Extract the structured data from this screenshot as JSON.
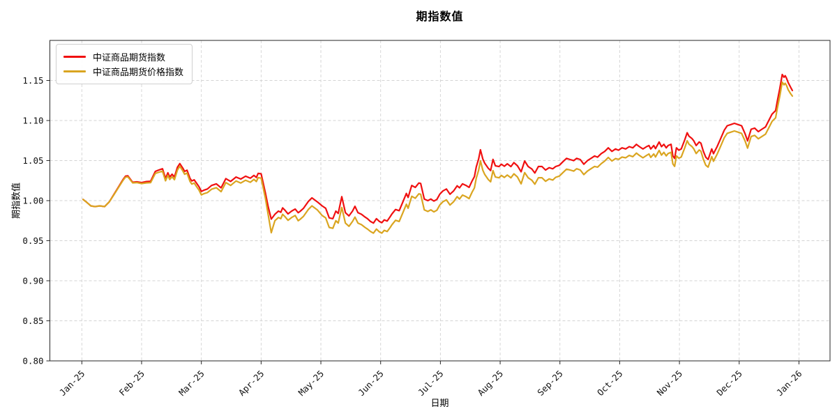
{
  "figure": {
    "background": "#ffffff",
    "grid_color": "#d3d3d3",
    "spine_color": "#262626"
  },
  "chart_data": {
    "type": "line",
    "title": "期指数值",
    "xlabel": "日期",
    "ylabel": "期指数值",
    "grid": true,
    "legend_position": "upper-left",
    "x_unit": "months-since-Jan-25",
    "x_tick_labels": [
      "Jan-25",
      "Feb-25",
      "Mar-25",
      "Apr-25",
      "May-25",
      "Jun-25",
      "Jul-25",
      "Aug-25",
      "Sep-25",
      "Oct-25",
      "Nov-25",
      "Dec-25",
      "Jan-26"
    ],
    "x_tick_positions": [
      0,
      1,
      2,
      3,
      4,
      5,
      6,
      7,
      8,
      9,
      10,
      11,
      12
    ],
    "y_tick_labels": [
      "0.80",
      "0.85",
      "0.90",
      "0.95",
      "1.00",
      "1.05",
      "1.10",
      "1.15"
    ],
    "y_tick_values": [
      0.8,
      0.85,
      0.9,
      0.95,
      1.0,
      1.05,
      1.1,
      1.15
    ],
    "xlim": [
      -0.535,
      12.52
    ],
    "ylim": [
      0.8,
      1.2
    ],
    "series": [
      {
        "name": "中证商品期货指数",
        "color": "#f01010"
      },
      {
        "name": "中证商品期货价格指数",
        "color": "#daa520"
      }
    ],
    "points": [
      [
        0.02,
        1.0015,
        1.0015
      ],
      [
        0.08,
        0.998,
        0.998
      ],
      [
        0.15,
        0.9935,
        0.9935
      ],
      [
        0.22,
        0.9925,
        0.9925
      ],
      [
        0.3,
        0.9935,
        0.9935
      ],
      [
        0.38,
        0.9925,
        0.9925
      ],
      [
        0.46,
        0.9985,
        0.9985
      ],
      [
        0.53,
        1.007,
        1.0065
      ],
      [
        0.62,
        1.018,
        1.0172
      ],
      [
        0.69,
        1.0265,
        1.0255
      ],
      [
        0.73,
        1.0305,
        1.0293
      ],
      [
        0.77,
        1.031,
        1.0297
      ],
      [
        0.85,
        1.023,
        1.0222
      ],
      [
        0.92,
        1.0235,
        1.0225
      ],
      [
        1.0,
        1.0225,
        1.0213
      ],
      [
        1.08,
        1.0238,
        1.0222
      ],
      [
        1.15,
        1.0242,
        1.0224
      ],
      [
        1.23,
        1.0365,
        1.034
      ],
      [
        1.28,
        1.038,
        1.0352
      ],
      [
        1.35,
        1.0398,
        1.0368
      ],
      [
        1.4,
        1.0278,
        1.0248
      ],
      [
        1.44,
        1.0348,
        1.0316
      ],
      [
        1.47,
        1.0296,
        1.0264
      ],
      [
        1.51,
        1.033,
        1.0298
      ],
      [
        1.55,
        1.0296,
        1.0262
      ],
      [
        1.6,
        1.0417,
        1.0383
      ],
      [
        1.64,
        1.0463,
        1.043
      ],
      [
        1.69,
        1.0406,
        1.0371
      ],
      [
        1.72,
        1.0365,
        1.033
      ],
      [
        1.76,
        1.038,
        1.0344
      ],
      [
        1.81,
        1.0278,
        1.024
      ],
      [
        1.84,
        1.0246,
        1.0207
      ],
      [
        1.88,
        1.026,
        1.022
      ],
      [
        1.92,
        1.0217,
        1.0175
      ],
      [
        1.96,
        1.0174,
        1.0131
      ],
      [
        2.0,
        1.0116,
        1.0072
      ],
      [
        2.04,
        1.013,
        1.0086
      ],
      [
        2.1,
        1.0145,
        1.01
      ],
      [
        2.17,
        1.019,
        1.0143
      ],
      [
        2.25,
        1.021,
        1.0162
      ],
      [
        2.33,
        1.016,
        1.0112
      ],
      [
        2.41,
        1.0275,
        1.0225
      ],
      [
        2.49,
        1.024,
        1.019
      ],
      [
        2.58,
        1.0295,
        1.0245
      ],
      [
        2.66,
        1.027,
        1.022
      ],
      [
        2.74,
        1.0305,
        1.0255
      ],
      [
        2.82,
        1.028,
        1.023
      ],
      [
        2.88,
        1.0315,
        1.0265
      ],
      [
        2.92,
        1.029,
        1.0238
      ],
      [
        2.95,
        1.034,
        1.0287
      ],
      [
        3.0,
        1.0335,
        1.0281
      ],
      [
        3.07,
        1.01,
        1.0035
      ],
      [
        3.12,
        0.992,
        0.982
      ],
      [
        3.17,
        0.977,
        0.96
      ],
      [
        3.23,
        0.983,
        0.975
      ],
      [
        3.29,
        0.987,
        0.979
      ],
      [
        3.33,
        0.9855,
        0.9775
      ],
      [
        3.36,
        0.991,
        0.983
      ],
      [
        3.4,
        0.988,
        0.98
      ],
      [
        3.45,
        0.9835,
        0.9755
      ],
      [
        3.51,
        0.987,
        0.979
      ],
      [
        3.57,
        0.9895,
        0.9815
      ],
      [
        3.62,
        0.985,
        0.975
      ],
      [
        3.65,
        0.9865,
        0.9765
      ],
      [
        3.71,
        0.9905,
        0.9805
      ],
      [
        3.79,
        0.999,
        0.989
      ],
      [
        3.85,
        1.0035,
        0.9935
      ],
      [
        3.94,
        0.9985,
        0.9885
      ],
      [
        4.02,
        0.9935,
        0.9815
      ],
      [
        4.08,
        0.9905,
        0.9785
      ],
      [
        4.14,
        0.9785,
        0.9665
      ],
      [
        4.2,
        0.9775,
        0.9655
      ],
      [
        4.25,
        0.987,
        0.975
      ],
      [
        4.29,
        0.984,
        0.972
      ],
      [
        4.35,
        1.005,
        0.9915
      ],
      [
        4.41,
        0.985,
        0.972
      ],
      [
        4.47,
        0.981,
        0.968
      ],
      [
        4.53,
        0.987,
        0.974
      ],
      [
        4.57,
        0.993,
        0.9795
      ],
      [
        4.62,
        0.985,
        0.972
      ],
      [
        4.68,
        0.983,
        0.97
      ],
      [
        4.74,
        0.9795,
        0.9665
      ],
      [
        4.78,
        0.9775,
        0.9645
      ],
      [
        4.83,
        0.974,
        0.9615
      ],
      [
        4.88,
        0.972,
        0.9595
      ],
      [
        4.93,
        0.9775,
        0.9645
      ],
      [
        4.98,
        0.974,
        0.961
      ],
      [
        5.02,
        0.9725,
        0.9595
      ],
      [
        5.06,
        0.976,
        0.963
      ],
      [
        5.11,
        0.9745,
        0.9615
      ],
      [
        5.16,
        0.98,
        0.9665
      ],
      [
        5.19,
        0.9835,
        0.97
      ],
      [
        5.25,
        0.989,
        0.9755
      ],
      [
        5.31,
        0.9875,
        0.974
      ],
      [
        5.37,
        0.998,
        0.9845
      ],
      [
        5.43,
        1.009,
        0.9955
      ],
      [
        5.46,
        1.004,
        0.9905
      ],
      [
        5.52,
        1.019,
        1.0055
      ],
      [
        5.58,
        1.0165,
        1.003
      ],
      [
        5.64,
        1.022,
        1.0085
      ],
      [
        5.67,
        1.0215,
        1.008
      ],
      [
        5.73,
        1.002,
        0.9885
      ],
      [
        5.79,
        1.0,
        0.9865
      ],
      [
        5.84,
        1.002,
        0.9885
      ],
      [
        5.89,
        0.9995,
        0.986
      ],
      [
        5.94,
        1.0015,
        0.988
      ],
      [
        5.99,
        1.008,
        0.9945
      ],
      [
        6.04,
        1.012,
        0.9985
      ],
      [
        6.1,
        1.0145,
        1.001
      ],
      [
        6.16,
        1.008,
        0.9945
      ],
      [
        6.22,
        1.012,
        0.9985
      ],
      [
        6.28,
        1.0185,
        1.005
      ],
      [
        6.32,
        1.016,
        1.002
      ],
      [
        6.37,
        1.021,
        1.007
      ],
      [
        6.43,
        1.019,
        1.005
      ],
      [
        6.48,
        1.0165,
        1.0025
      ],
      [
        6.53,
        1.0245,
        1.0105
      ],
      [
        6.57,
        1.03,
        1.016
      ],
      [
        6.6,
        1.042,
        1.028
      ],
      [
        6.64,
        1.052,
        1.038
      ],
      [
        6.67,
        1.0635,
        1.0497
      ],
      [
        6.71,
        1.052,
        1.038
      ],
      [
        6.74,
        1.047,
        1.033
      ],
      [
        6.8,
        1.0405,
        1.0265
      ],
      [
        6.84,
        1.0375,
        1.0235
      ],
      [
        6.88,
        1.0515,
        1.0375
      ],
      [
        6.92,
        1.0435,
        1.0295
      ],
      [
        6.98,
        1.0425,
        1.0285
      ],
      [
        7.02,
        1.0455,
        1.0315
      ],
      [
        7.07,
        1.043,
        1.029
      ],
      [
        7.12,
        1.046,
        1.032
      ],
      [
        7.18,
        1.0425,
        1.0285
      ],
      [
        7.23,
        1.0475,
        1.0335
      ],
      [
        7.29,
        1.0435,
        1.0295
      ],
      [
        7.35,
        1.036,
        1.021
      ],
      [
        7.41,
        1.0495,
        1.035
      ],
      [
        7.47,
        1.0425,
        1.0285
      ],
      [
        7.53,
        1.0395,
        1.0255
      ],
      [
        7.58,
        1.0345,
        1.0205
      ],
      [
        7.64,
        1.0426,
        1.0286
      ],
      [
        7.7,
        1.0426,
        1.0286
      ],
      [
        7.76,
        1.0382,
        1.0242
      ],
      [
        7.82,
        1.0411,
        1.0271
      ],
      [
        7.88,
        1.0397,
        1.0257
      ],
      [
        7.93,
        1.0426,
        1.0291
      ],
      [
        7.99,
        1.0441,
        1.0306
      ],
      [
        8.05,
        1.0485,
        1.035
      ],
      [
        8.11,
        1.0528,
        1.0393
      ],
      [
        8.17,
        1.0513,
        1.0383
      ],
      [
        8.23,
        1.0499,
        1.0369
      ],
      [
        8.28,
        1.0528,
        1.0398
      ],
      [
        8.34,
        1.0513,
        1.0383
      ],
      [
        8.4,
        1.0455,
        1.0325
      ],
      [
        8.46,
        1.0499,
        1.0369
      ],
      [
        8.52,
        1.0528,
        1.0398
      ],
      [
        8.58,
        1.0557,
        1.0427
      ],
      [
        8.63,
        1.0543,
        1.0418
      ],
      [
        8.69,
        1.0586,
        1.0461
      ],
      [
        8.75,
        1.0615,
        1.0495
      ],
      [
        8.81,
        1.0659,
        1.0539
      ],
      [
        8.87,
        1.0615,
        1.0495
      ],
      [
        8.93,
        1.0645,
        1.0525
      ],
      [
        8.98,
        1.063,
        1.0515
      ],
      [
        9.04,
        1.0659,
        1.0544
      ],
      [
        9.1,
        1.0645,
        1.0535
      ],
      [
        9.16,
        1.0674,
        1.0564
      ],
      [
        9.22,
        1.0659,
        1.0549
      ],
      [
        9.28,
        1.0703,
        1.0593
      ],
      [
        9.33,
        1.0674,
        1.0564
      ],
      [
        9.39,
        1.0645,
        1.0535
      ],
      [
        9.45,
        1.0674,
        1.0564
      ],
      [
        9.49,
        1.0688,
        1.0583
      ],
      [
        9.52,
        1.0645,
        1.054
      ],
      [
        9.57,
        1.0688,
        1.0583
      ],
      [
        9.6,
        1.065,
        1.0545
      ],
      [
        9.66,
        1.0732,
        1.0627
      ],
      [
        9.7,
        1.0674,
        1.0569
      ],
      [
        9.74,
        1.0703,
        1.0603
      ],
      [
        9.78,
        1.0659,
        1.0559
      ],
      [
        9.81,
        1.0688,
        1.0588
      ],
      [
        9.86,
        1.0703,
        1.0603
      ],
      [
        9.89,
        1.0557,
        1.0457
      ],
      [
        9.92,
        1.0528,
        1.0428
      ],
      [
        9.95,
        1.0659,
        1.0559
      ],
      [
        9.99,
        1.063,
        1.053
      ],
      [
        10.03,
        1.0645,
        1.0545
      ],
      [
        10.09,
        1.0761,
        1.0661
      ],
      [
        10.13,
        1.0848,
        1.0748
      ],
      [
        10.16,
        1.0804,
        1.0704
      ],
      [
        10.21,
        1.0775,
        1.0675
      ],
      [
        10.24,
        1.0746,
        1.0646
      ],
      [
        10.28,
        1.0688,
        1.0588
      ],
      [
        10.33,
        1.0732,
        1.0632
      ],
      [
        10.36,
        1.0717,
        1.0617
      ],
      [
        10.4,
        1.0616,
        1.0516
      ],
      [
        10.44,
        1.0543,
        1.0443
      ],
      [
        10.48,
        1.0513,
        1.0418
      ],
      [
        10.54,
        1.0645,
        1.055
      ],
      [
        10.57,
        1.0586,
        1.0491
      ],
      [
        10.63,
        1.0674,
        1.0579
      ],
      [
        10.69,
        1.0775,
        1.068
      ],
      [
        10.75,
        1.088,
        1.0785
      ],
      [
        10.8,
        1.0935,
        1.084
      ],
      [
        10.86,
        1.095,
        1.0855
      ],
      [
        10.92,
        1.0965,
        1.087
      ],
      [
        10.98,
        1.095,
        1.0855
      ],
      [
        11.04,
        1.0935,
        1.084
      ],
      [
        11.1,
        1.0833,
        1.0743
      ],
      [
        11.14,
        1.0746,
        1.0656
      ],
      [
        11.2,
        1.0891,
        1.0801
      ],
      [
        11.26,
        1.0905,
        1.0815
      ],
      [
        11.32,
        1.0862,
        1.0772
      ],
      [
        11.38,
        1.0891,
        1.0801
      ],
      [
        11.44,
        1.092,
        1.083
      ],
      [
        11.49,
        1.0993,
        1.0903
      ],
      [
        11.55,
        1.108,
        1.099
      ],
      [
        11.61,
        1.1124,
        1.1034
      ],
      [
        11.64,
        1.125,
        1.116
      ],
      [
        11.68,
        1.14,
        1.1305
      ],
      [
        11.72,
        1.1575,
        1.148
      ],
      [
        11.75,
        1.154,
        1.1445
      ],
      [
        11.77,
        1.156,
        1.1465
      ],
      [
        11.79,
        1.153,
        1.144
      ],
      [
        11.82,
        1.1474,
        1.1384
      ],
      [
        11.86,
        1.1415,
        1.1335
      ],
      [
        11.89,
        1.1375,
        1.1305
      ]
    ]
  }
}
